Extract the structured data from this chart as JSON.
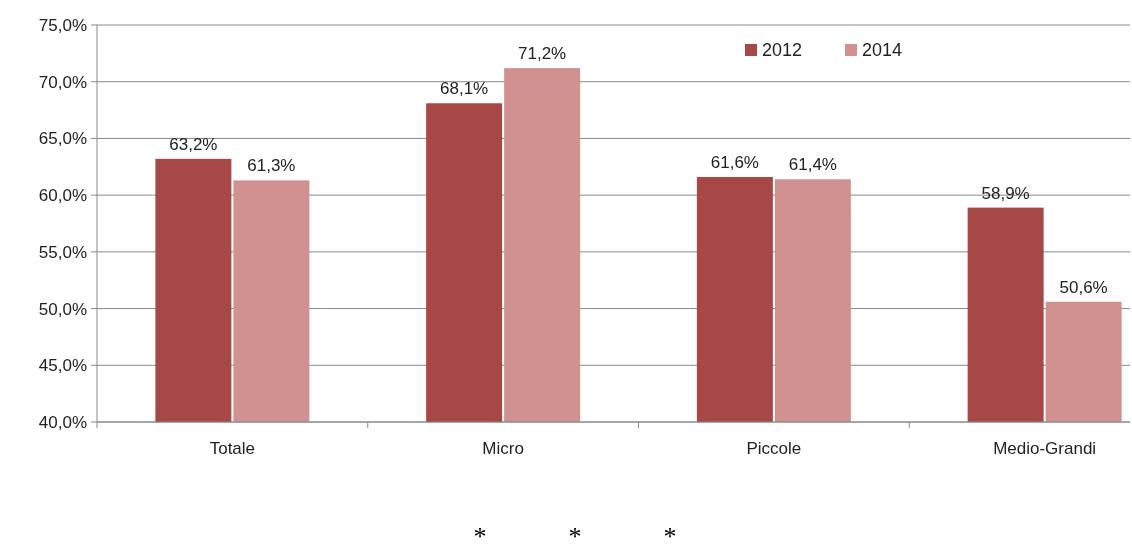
{
  "chart_data": {
    "type": "bar",
    "categories": [
      "Totale",
      "Micro",
      "Piccole",
      "Medio-Grandi"
    ],
    "series": [
      {
        "name": "2012",
        "color": "#a84846",
        "values": [
          63.2,
          68.1,
          61.6,
          58.9
        ],
        "value_labels": [
          "63,2%",
          "68,1%",
          "61,6%",
          "58,9%"
        ]
      },
      {
        "name": "2014",
        "color": "#d19190",
        "values": [
          61.3,
          71.2,
          61.4,
          50.6
        ],
        "value_labels": [
          "61,3%",
          "71,2%",
          "61,4%",
          "50,6%"
        ]
      }
    ],
    "ylim": [
      40,
      75
    ],
    "yticks": [
      {
        "value": 40,
        "label": "40,0%"
      },
      {
        "value": 45,
        "label": "45,0%"
      },
      {
        "value": 50,
        "label": "50,0%"
      },
      {
        "value": 55,
        "label": "55,0%"
      },
      {
        "value": 60,
        "label": "60,0%"
      },
      {
        "value": 65,
        "label": "65,0%"
      },
      {
        "value": 70,
        "label": "70,0%"
      },
      {
        "value": 75,
        "label": "75,0%"
      }
    ],
    "grid": "y",
    "legend": "top right",
    "annotations": [
      "*",
      "*",
      "*"
    ]
  }
}
